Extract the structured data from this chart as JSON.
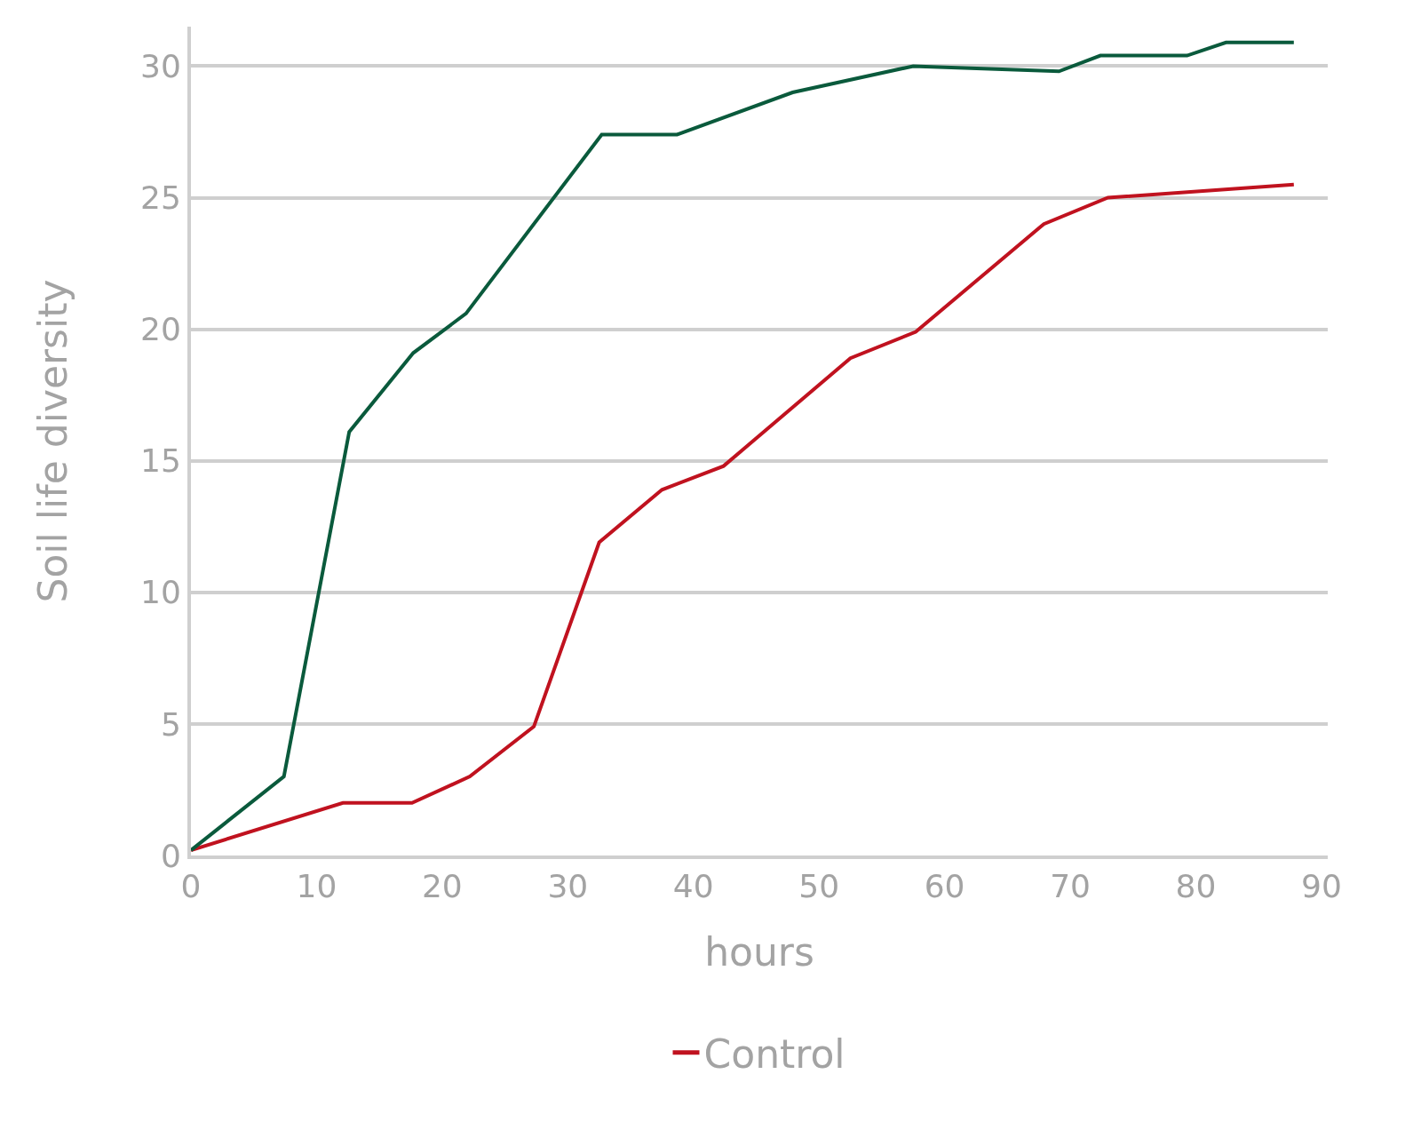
{
  "chart_data": {
    "type": "line",
    "xlabel": "hours",
    "ylabel": "Soil life diversity",
    "xlim": [
      0,
      90.5
    ],
    "xticks": [
      0,
      10,
      20,
      30,
      40,
      50,
      60,
      70,
      80,
      90
    ],
    "ylim": [
      0,
      31.5
    ],
    "yticks": [
      0,
      5,
      10,
      15,
      20,
      25,
      30
    ],
    "grid": "y",
    "legend": "bottom",
    "marker": "none",
    "line_style": "solid",
    "series": [
      {
        "name": "Control",
        "color": "#c0121f",
        "x": [
          0,
          12.1,
          17.6,
          22.2,
          27.3,
          32.5,
          37.5,
          42.4,
          52.5,
          57.7,
          67.9,
          73.0,
          87.8
        ],
        "values": [
          0.2,
          2.0,
          2.0,
          3.0,
          4.9,
          11.9,
          13.9,
          14.8,
          18.9,
          19.9,
          24.0,
          25.0,
          25.5
        ]
      },
      {
        "color": "#0a5a3c",
        "x": [
          0,
          7.4,
          12.6,
          17.7,
          21.9,
          32.7,
          38.7,
          47.9,
          57.5,
          69.1,
          72.4,
          79.3,
          82.4,
          87.8
        ],
        "values": [
          0.2,
          3.0,
          16.1,
          19.1,
          20.6,
          27.4,
          27.4,
          29.0,
          30.0,
          29.8,
          30.4,
          30.4,
          30.9,
          30.9
        ]
      }
    ]
  }
}
